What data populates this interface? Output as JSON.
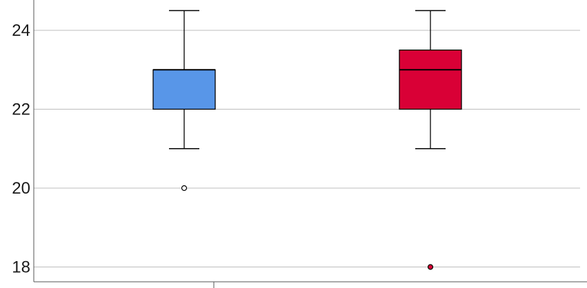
{
  "chart_data": {
    "type": "box",
    "title": "",
    "xlabel": "",
    "ylabel": "",
    "ylim": [
      17.6,
      25.0
    ],
    "yticks": [
      18,
      20,
      22,
      24
    ],
    "y_tick_labels": [
      "18",
      "20",
      "22",
      "24"
    ],
    "grid": true,
    "series": [
      {
        "color": "#5896e8",
        "whisker_low": 21,
        "q1": 22,
        "median": 23,
        "q3": 23,
        "whisker_high": 24.5,
        "outliers": [
          20
        ],
        "outlier_fill": "#ffffff"
      },
      {
        "color": "#d90036",
        "whisker_low": 21,
        "q1": 22,
        "median": 23,
        "q3": 23.5,
        "whisker_high": 24.5,
        "outliers": [
          18
        ],
        "outlier_fill": "#d90036"
      }
    ]
  }
}
